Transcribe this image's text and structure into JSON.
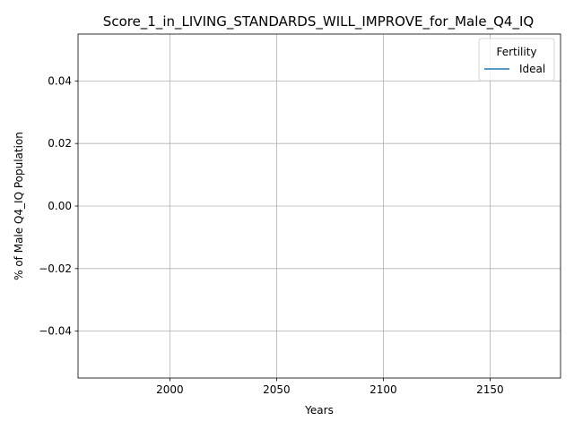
{
  "chart_data": {
    "type": "line",
    "title": "Score_1_in_LIVING_STANDARDS_WILL_IMPROVE_for_Male_Q4_IQ",
    "xlabel": "Years",
    "ylabel": "% of Male Q4_IQ Population",
    "xlim": [
      1957,
      2183
    ],
    "ylim": [
      -0.055,
      0.055
    ],
    "xticks": [
      2000,
      2050,
      2100,
      2150
    ],
    "xtick_labels": [
      "2000",
      "2050",
      "2100",
      "2150"
    ],
    "yticks": [
      -0.04,
      -0.02,
      0.0,
      0.02,
      0.04
    ],
    "ytick_labels": [
      "−0.04",
      "−0.02",
      "0.00",
      "0.02",
      "0.04"
    ],
    "grid": true,
    "legend": {
      "title": "Fertility",
      "placement": "top-right",
      "entries": [
        {
          "name": "Ideal",
          "color": "#1f77b4"
        }
      ]
    },
    "series": [
      {
        "name": "Ideal",
        "color": "#1f77b4",
        "x": [],
        "y": []
      }
    ]
  }
}
